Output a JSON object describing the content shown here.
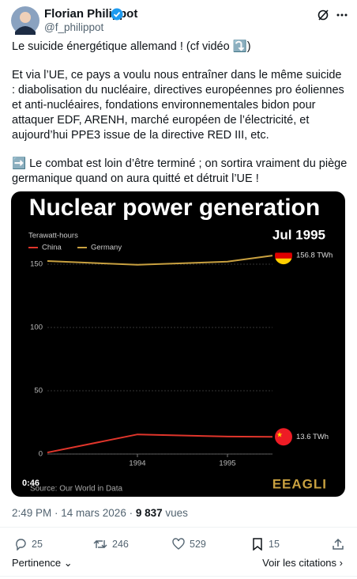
{
  "header": {
    "name": "Florian Philippot",
    "handle": "@f_philippot"
  },
  "text": {
    "paragraphs": [
      "Le suicide énergétique allemand ! (cf vidéo ⤵️)",
      "Et via l’UE, ce pays a voulu nous entraîner dans le même suicide : diabolisation du nucléaire, directives européennes pro éoliennes et anti-nucléaires, fondations environnementales bidon pour attaquer EDF, ARENH, marché européen de l’électricité, et aujourd’hui PPE3 issue de la directive RED III, etc.",
      "➡️ Le combat est loin d’être terminé ; on sortira vraiment du piège germanique quand on aura quitté et détruit l’UE !"
    ]
  },
  "video": {
    "timestamp": "0:46",
    "source": "Source: Our World in Data",
    "logo": "EEAGLI"
  },
  "chart_data": {
    "type": "line",
    "title": "Nuclear power generation",
    "y_label": "Terawatt-hours",
    "date_label": "Jul 1995",
    "x": [
      1993,
      1994,
      1995,
      1995.5
    ],
    "series": [
      {
        "name": "China",
        "color": "#e0352b",
        "values": [
          1.2,
          15.5,
          13.8,
          13.6
        ],
        "value_labels": [
          null,
          null,
          null,
          "13.6 TWh"
        ]
      },
      {
        "name": "Germany",
        "color": "#c9a140",
        "values": [
          152.5,
          149.5,
          152,
          156.8
        ],
        "value_labels": [
          null,
          null,
          null,
          "156.8 TWh"
        ]
      }
    ],
    "xlim": [
      1993,
      1995.5
    ],
    "ylim": [
      0,
      165
    ],
    "xticks": [
      1994,
      1995
    ],
    "yticks": [
      0,
      50,
      100,
      150
    ],
    "grid": true
  },
  "footer": {
    "meta": "2:49 PM · 14 mars 2026 ·",
    "views": "9 837",
    "views_label": "vues"
  },
  "actions": {
    "replies": 25,
    "reposts": 246,
    "likes": 529,
    "bookmarks": 15
  },
  "replies_bar": {
    "sort": "Pertinence",
    "quotes": "Voir les citations"
  }
}
